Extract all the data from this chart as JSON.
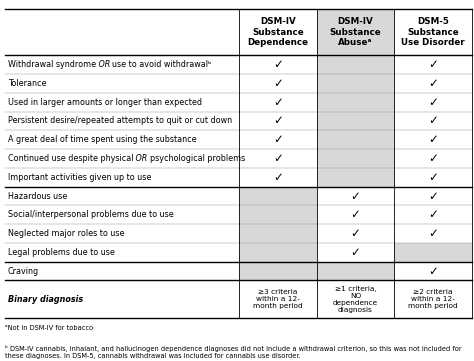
{
  "col_headers": [
    "DSM-IV\nSubstance\nDependence",
    "DSM-IV\nSubstance\nAbuseᵃ",
    "DSM-5\nSubstance\nUse Disorder"
  ],
  "rows": [
    {
      "label": "Withdrawal syndrome OR use to avoid withdrawalᵇ",
      "italic_or": true,
      "checks": [
        true,
        false,
        true
      ],
      "gray": [
        false,
        true,
        false
      ]
    },
    {
      "label": "Tolerance",
      "checks": [
        true,
        false,
        true
      ],
      "gray": [
        false,
        true,
        false
      ]
    },
    {
      "label": "Used in larger amounts or longer than expected",
      "checks": [
        true,
        false,
        true
      ],
      "gray": [
        false,
        true,
        false
      ]
    },
    {
      "label": "Persistent desire/repeated attempts to quit or cut down",
      "checks": [
        true,
        false,
        true
      ],
      "gray": [
        false,
        true,
        false
      ]
    },
    {
      "label": "A great deal of time spent using the substance",
      "checks": [
        true,
        false,
        true
      ],
      "gray": [
        false,
        true,
        false
      ]
    },
    {
      "label": "Continued use despite physical OR psychological problems",
      "italic_or": true,
      "checks": [
        true,
        false,
        true
      ],
      "gray": [
        false,
        true,
        false
      ]
    },
    {
      "label": "Important activities given up to use",
      "checks": [
        true,
        false,
        true
      ],
      "gray": [
        false,
        true,
        false
      ]
    },
    {
      "label": "Hazardous use",
      "checks": [
        false,
        true,
        true
      ],
      "gray": [
        true,
        false,
        false
      ],
      "thick_top": true
    },
    {
      "label": "Social/interpersonal problems due to use",
      "checks": [
        false,
        true,
        true
      ],
      "gray": [
        true,
        false,
        false
      ]
    },
    {
      "label": "Neglected major roles to use",
      "checks": [
        false,
        true,
        true
      ],
      "gray": [
        true,
        false,
        false
      ]
    },
    {
      "label": "Legal problems due to use",
      "checks": [
        false,
        true,
        false
      ],
      "gray": [
        true,
        false,
        true
      ]
    },
    {
      "label": "Craving",
      "checks": [
        false,
        false,
        true
      ],
      "gray": [
        true,
        true,
        false
      ],
      "thick_top": true
    },
    {
      "label": "Binary diagnosis",
      "bold": true,
      "italic": true,
      "checks": [
        false,
        false,
        false
      ],
      "gray": [
        false,
        false,
        false
      ],
      "binary_text": [
        "≥3 criteria\nwithin a 12-\nmonth period",
        "≥1 criteria,\nNO\ndependence\ndiagnosis",
        "≥2 criteria\nwithin a 12-\nmonth period"
      ],
      "thick_top": true
    }
  ],
  "footnote_a": "ᵃNot in DSM-IV for tobacco",
  "footnote_b": "ᵇ DSM-IV cannabis, inhalant, and hallucinogen dependence diagnoses did not include a withdrawal criterion, so this was not included for these diagnoses. In DSM-5, cannabis withdrawal was included for cannabis use disorder.",
  "gray_color": "#d8d8d8",
  "check_symbol": "✓",
  "figure_bg": "#ffffff",
  "label_fontsize": 5.8,
  "header_fontsize": 6.3,
  "check_fontsize": 8.5,
  "binary_fontsize": 5.3,
  "footnote_fontsize": 4.8
}
